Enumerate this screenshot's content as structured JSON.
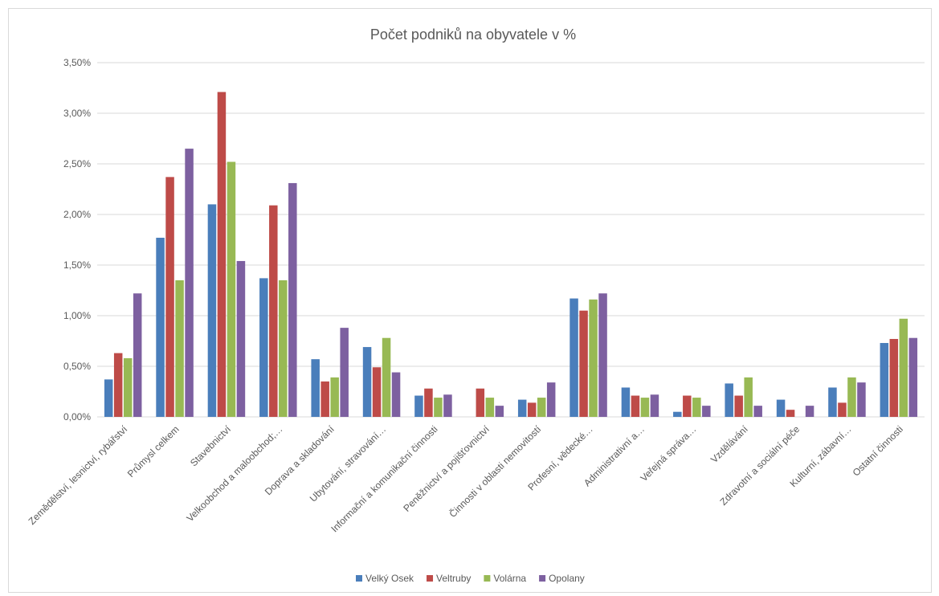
{
  "chart_data": {
    "type": "bar",
    "title": "Počet podniků na obyvatele v %",
    "xlabel": "",
    "ylabel": "",
    "ylim": [
      0,
      0.035
    ],
    "yticks": [
      0,
      0.005,
      0.01,
      0.015,
      0.02,
      0.025,
      0.03,
      0.035
    ],
    "ytick_labels": [
      "0,00%",
      "0,50%",
      "1,00%",
      "1,50%",
      "2,00%",
      "2,50%",
      "3,00%",
      "3,50%"
    ],
    "grid": true,
    "legend_position": "bottom",
    "categories": [
      "Zemědělství, lesnictví, rybářství",
      "Průmysl celkem",
      "Stavebnictví",
      "Velkoobchod a maloobchod;…",
      "Doprava a skladování",
      "Ubytování, stravování…",
      "Informační a komunikační činnosti",
      "Peněžnictví a pojišťovnictví",
      "Činnosti v oblasti nemovitostí",
      "Profesní, vědecké…",
      "Administrativní a…",
      "Veřejná správa…",
      "Vzdělávání",
      "Zdravotní a sociální péče",
      "Kulturní, zábavní…",
      "Ostatní činnosti"
    ],
    "series": [
      {
        "name": "Velký Osek",
        "color": "#4a7ebb",
        "values": [
          0.0037,
          0.0177,
          0.021,
          0.0137,
          0.0057,
          0.0069,
          0.0021,
          0.0,
          0.0017,
          0.0117,
          0.0029,
          0.0005,
          0.0033,
          0.0017,
          0.0029,
          0.0073
        ]
      },
      {
        "name": "Veltruby",
        "color": "#be4b48",
        "values": [
          0.0063,
          0.0237,
          0.0321,
          0.0209,
          0.0035,
          0.0049,
          0.0028,
          0.0028,
          0.0014,
          0.0105,
          0.0021,
          0.0021,
          0.0021,
          0.0007,
          0.0014,
          0.0077
        ]
      },
      {
        "name": "Volárna",
        "color": "#98b954",
        "values": [
          0.0058,
          0.0135,
          0.0252,
          0.0135,
          0.0039,
          0.0078,
          0.0019,
          0.0019,
          0.0019,
          0.0116,
          0.0019,
          0.0019,
          0.0039,
          0.0,
          0.0039,
          0.0097
        ]
      },
      {
        "name": "Opolany",
        "color": "#7d60a0",
        "values": [
          0.0122,
          0.0265,
          0.0154,
          0.0231,
          0.0088,
          0.0044,
          0.0022,
          0.0011,
          0.0034,
          0.0122,
          0.0022,
          0.0011,
          0.0011,
          0.0011,
          0.0034,
          0.0078
        ]
      }
    ]
  }
}
